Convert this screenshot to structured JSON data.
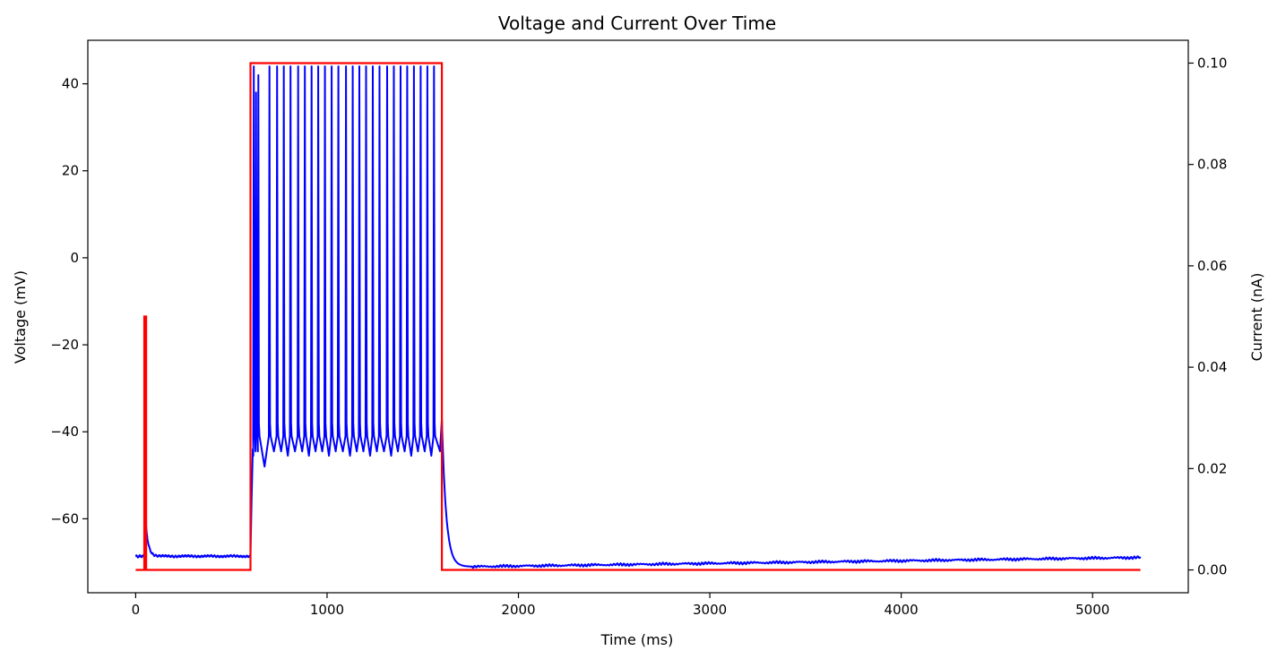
{
  "chart_data": {
    "type": "line",
    "title": "Voltage and Current Over Time",
    "xlabel": "Time (ms)",
    "ylabel_left": "Voltage (mV)",
    "ylabel_right": "Current (nA)",
    "xlim": [
      -250,
      5500
    ],
    "ylim_left": [
      -77,
      50
    ],
    "ylim_right": [
      -0.0045,
      0.1045
    ],
    "x_ticks": [
      0,
      1000,
      2000,
      3000,
      4000,
      5000
    ],
    "y_left_ticks": [
      -60,
      -40,
      -20,
      0,
      20,
      40
    ],
    "y_right_ticks": [
      0.0,
      0.02,
      0.04,
      0.06,
      0.08,
      0.1
    ],
    "y_right_tick_labels": [
      "0.00",
      "0.02",
      "0.04",
      "0.06",
      "0.08",
      "0.10"
    ],
    "grid": false,
    "series": [
      {
        "axis": "left",
        "color": "#0000ff",
        "resting_mV": -68.7,
        "interspike_mV": -44,
        "spike_peak_mV": 44,
        "spike_times_ms": [
          618,
          630,
          642,
          700,
          740,
          775,
          810,
          850,
          885,
          920,
          955,
          990,
          1025,
          1060,
          1100,
          1135,
          1170,
          1205,
          1240,
          1275,
          1315,
          1350,
          1385,
          1420,
          1455,
          1490,
          1525,
          1560
        ],
        "key_points": [
          {
            "t": 0,
            "v": -68.7
          },
          {
            "t": 50,
            "v": -68.8
          },
          {
            "t": 55,
            "v": -62
          },
          {
            "t": 100,
            "v": -68.3
          },
          {
            "t": 200,
            "v": -68.6
          },
          {
            "t": 600,
            "v": -68.5
          },
          {
            "t": 1600,
            "v": -37
          },
          {
            "t": 1700,
            "v": -68
          },
          {
            "t": 1760,
            "v": -71
          },
          {
            "t": 2000,
            "v": -70.8
          },
          {
            "t": 3000,
            "v": -70
          },
          {
            "t": 4000,
            "v": -69.5
          },
          {
            "t": 5250,
            "v": -68.9
          }
        ]
      },
      {
        "axis": "right",
        "color": "#ff0000",
        "points": [
          [
            0,
            0.0
          ],
          [
            45,
            0.0
          ],
          [
            45,
            0.05
          ],
          [
            55,
            0.05
          ],
          [
            55,
            0.0
          ],
          [
            600,
            0.0
          ],
          [
            600,
            0.1
          ],
          [
            1600,
            0.1
          ],
          [
            1600,
            0.0
          ],
          [
            5250,
            0.0
          ]
        ]
      }
    ]
  }
}
